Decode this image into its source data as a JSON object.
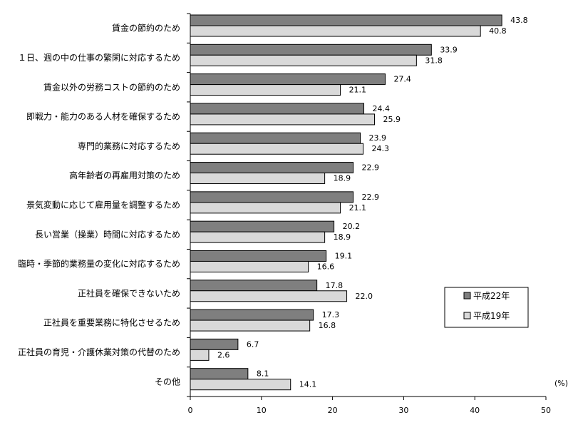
{
  "chart_data": {
    "type": "bar",
    "orientation": "horizontal",
    "categories": [
      "賃金の節約のため",
      "１日、週の中の仕事の繁閑に対応するため",
      "賃金以外の労務コストの節約のため",
      "即戦力・能力のある人材を確保するため",
      "専門的業務に対応するため",
      "高年齢者の再雇用対策のため",
      "景気変動に応じて雇用量を調整するため",
      "長い営業（操業）時間に対応するため",
      "臨時・季節的業務量の変化に対応するため",
      "正社員を確保できないため",
      "正社員を重要業務に特化させるため",
      "正社員の育児・介護休業対策の代替のため",
      "その他"
    ],
    "series": [
      {
        "name": "平成22年",
        "color": "#7f7f7f",
        "values": [
          43.8,
          33.9,
          27.4,
          24.4,
          23.9,
          22.9,
          22.9,
          20.2,
          19.1,
          17.8,
          17.3,
          6.7,
          8.1
        ],
        "value_labels": [
          "43.8",
          "33.9",
          "27.4",
          "24.4",
          "23.9",
          "22.9",
          "22.9",
          "20.2",
          "19.1",
          "17.8",
          "17.3",
          "6.7",
          "8.1"
        ]
      },
      {
        "name": "平成19年",
        "color": "#d9d9d9",
        "values": [
          40.8,
          31.8,
          21.1,
          25.9,
          24.3,
          18.9,
          21.1,
          18.9,
          16.6,
          22.0,
          16.8,
          2.6,
          14.1
        ],
        "value_labels": [
          "40.8",
          "31.8",
          "21.1",
          "25.9",
          "24.3",
          "18.9",
          "21.1",
          "18.9",
          "16.6",
          "22.0",
          "16.8",
          "2.6",
          "14.1"
        ]
      }
    ],
    "xlim": [
      0,
      50
    ],
    "xticks": [
      0,
      10,
      20,
      30,
      40,
      50
    ],
    "xtick_labels": [
      "0",
      "10",
      "20",
      "30",
      "40",
      "50"
    ],
    "unit_label": "(%)",
    "grid": false,
    "legend_position": "right"
  }
}
